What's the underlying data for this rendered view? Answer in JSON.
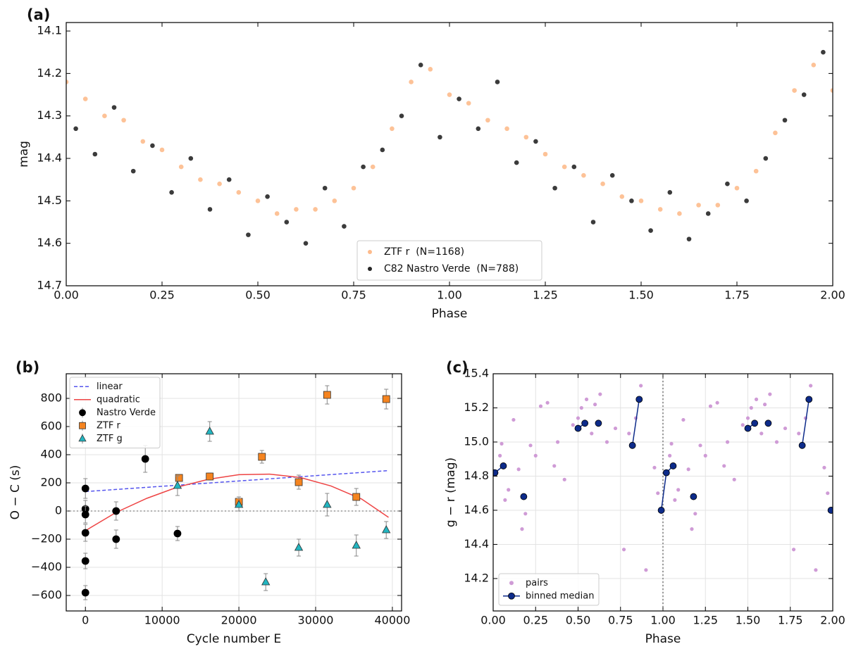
{
  "chart_data": [
    {
      "type": "scatter",
      "panel_label": "(a)",
      "xlabel": "Phase",
      "ylabel": "mag",
      "xlim": [
        0,
        2
      ],
      "ylim": [
        14.08,
        14.7
      ],
      "invert_y": true,
      "grid": false,
      "legend": "lower center",
      "xticks": [
        {
          "value": 0,
          "label": "0.00"
        },
        {
          "value": 0.25,
          "label": "0.25"
        },
        {
          "value": 0.5,
          "label": "0.50"
        },
        {
          "value": 0.75,
          "label": "0.75"
        },
        {
          "value": 1,
          "label": "1.00"
        },
        {
          "value": 1.25,
          "label": "1.25"
        },
        {
          "value": 1.5,
          "label": "1.50"
        },
        {
          "value": 1.75,
          "label": "1.75"
        },
        {
          "value": 2,
          "label": "2.00"
        }
      ],
      "yticks": [
        14.1,
        14.2,
        14.3,
        14.4,
        14.5,
        14.6,
        14.7
      ],
      "series": [
        {
          "name": "ZTF r  (N=1168)",
          "color": "#fdbb8c",
          "marker": "circle",
          "x": [
            0,
            0.05,
            0.1,
            0.15,
            0.2,
            0.25,
            0.3,
            0.35,
            0.4,
            0.45,
            0.5,
            0.55,
            0.6,
            0.65,
            0.7,
            0.75,
            0.8,
            0.85,
            0.9,
            0.95,
            1,
            1.05,
            1.1,
            1.15,
            1.2,
            1.25,
            1.3,
            1.35,
            1.4,
            1.45,
            1.5,
            1.55,
            1.6,
            1.65,
            1.7,
            1.75,
            1.8,
            1.85,
            1.9,
            1.95,
            2
          ],
          "values": [
            14.22,
            14.26,
            14.3,
            14.31,
            14.36,
            14.38,
            14.42,
            14.45,
            14.46,
            14.48,
            14.5,
            14.53,
            14.52,
            14.52,
            14.5,
            14.47,
            14.42,
            14.33,
            14.22,
            14.19,
            14.25,
            14.27,
            14.31,
            14.33,
            14.35,
            14.39,
            14.42,
            14.44,
            14.46,
            14.49,
            14.5,
            14.52,
            14.53,
            14.51,
            14.51,
            14.47,
            14.43,
            14.34,
            14.24,
            14.18,
            14.24
          ]
        },
        {
          "name": "C82 Nastro Verde  (N=788)",
          "color": "#262626",
          "marker": "circle",
          "x": [
            0.025,
            0.075,
            0.125,
            0.175,
            0.225,
            0.275,
            0.325,
            0.375,
            0.425,
            0.475,
            0.525,
            0.575,
            0.625,
            0.675,
            0.725,
            0.775,
            0.825,
            0.875,
            0.925,
            0.975,
            1.025,
            1.075,
            1.125,
            1.175,
            1.225,
            1.275,
            1.325,
            1.375,
            1.425,
            1.475,
            1.525,
            1.575,
            1.625,
            1.675,
            1.725,
            1.775,
            1.825,
            1.875,
            1.925,
            1.975
          ],
          "values": [
            14.33,
            14.39,
            14.28,
            14.43,
            14.37,
            14.48,
            14.4,
            14.52,
            14.45,
            14.58,
            14.49,
            14.55,
            14.6,
            14.47,
            14.56,
            14.42,
            14.38,
            14.3,
            14.18,
            14.35,
            14.26,
            14.33,
            14.22,
            14.41,
            14.36,
            14.47,
            14.42,
            14.55,
            14.44,
            14.5,
            14.57,
            14.48,
            14.59,
            14.53,
            14.46,
            14.5,
            14.4,
            14.31,
            14.25,
            14.15
          ]
        }
      ]
    },
    {
      "type": "errorbar",
      "panel_label": "(b)",
      "xlabel": "Cycle number E",
      "ylabel": "O − C (s)",
      "xlim": [
        -2500,
        41200
      ],
      "ylim": [
        -710,
        975
      ],
      "grid": true,
      "legend": "upper left",
      "hline": 0,
      "xticks": [
        0,
        10000,
        20000,
        30000,
        40000
      ],
      "yticks": [
        {
          "value": -600,
          "label": "−600"
        },
        {
          "value": -400,
          "label": "−400"
        },
        {
          "value": -200,
          "label": "−200"
        },
        0,
        200,
        400,
        600,
        800
      ],
      "series": [
        {
          "name": "linear",
          "type": "line",
          "linestyle": "dashed",
          "color": "#5555ee",
          "x": [
            0,
            39500
          ],
          "values": [
            138,
            287
          ]
        },
        {
          "name": "quadratic",
          "type": "line",
          "color": "#ee4444",
          "x": [
            0,
            4000,
            8000,
            12000,
            16000,
            20000,
            24000,
            28000,
            32000,
            36000,
            39500
          ],
          "values": [
            -140,
            -10,
            90,
            170,
            225,
            258,
            262,
            238,
            178,
            85,
            -45
          ]
        },
        {
          "name": "Nastro Verde",
          "type": "errorbar",
          "marker": "circle",
          "color": "#000000",
          "x": [
            0,
            0,
            0,
            0,
            0,
            0,
            4000,
            4000,
            7800,
            12000
          ],
          "values": [
            160,
            15,
            -25,
            -155,
            -355,
            -580,
            0,
            -200,
            370,
            -160
          ],
          "errors": [
            70,
            60,
            60,
            60,
            55,
            50,
            65,
            65,
            95,
            50
          ]
        },
        {
          "name": "ZTF r",
          "type": "errorbar",
          "marker": "square",
          "color": "#f5841f",
          "x": [
            12200,
            16200,
            20000,
            23000,
            27800,
            31500,
            35300,
            39200
          ],
          "values": [
            235,
            245,
            65,
            385,
            205,
            825,
            100,
            795
          ],
          "errors": [
            20,
            25,
            35,
            45,
            50,
            65,
            60,
            70
          ]
        },
        {
          "name": "ZTF g",
          "type": "errorbar",
          "marker": "triangle",
          "color": "#22b5c0",
          "x": [
            12000,
            16200,
            20000,
            23500,
            27800,
            31500,
            35300,
            39200
          ],
          "values": [
            180,
            565,
            45,
            -505,
            -260,
            45,
            -245,
            -135
          ],
          "errors": [
            70,
            70,
            45,
            60,
            60,
            80,
            75,
            60
          ]
        }
      ]
    },
    {
      "type": "scatter",
      "panel_label": "(c)",
      "xlabel": "Phase",
      "ylabel": "g − r (mag)",
      "xlim": [
        0,
        2
      ],
      "ylim": [
        14.01,
        15.4
      ],
      "grid": true,
      "legend": "lower left",
      "vline": 1,
      "xticks": [
        {
          "value": 0,
          "label": "0.00"
        },
        {
          "value": 0.25,
          "label": "0.25"
        },
        {
          "value": 0.5,
          "label": "0.50"
        },
        {
          "value": 0.75,
          "label": "0.75"
        },
        {
          "value": 1,
          "label": "1.00"
        },
        {
          "value": 1.25,
          "label": "1.25"
        },
        {
          "value": 1.5,
          "label": "1.50"
        },
        {
          "value": 1.75,
          "label": "1.75"
        },
        {
          "value": 2,
          "label": "2.00"
        }
      ],
      "yticks": [
        14.2,
        14.4,
        14.6,
        14.8,
        {
          "value": 15,
          "label": "15.0"
        },
        15.2,
        15.4
      ],
      "series": [
        {
          "name": "pairs",
          "type": "scatter",
          "marker": "circle",
          "color": "#cf9bd6",
          "x": [
            0.02,
            0.04,
            0.05,
            0.07,
            0.09,
            0.12,
            0.15,
            0.17,
            0.19,
            0.22,
            0.25,
            0.28,
            0.32,
            0.36,
            0.38,
            0.42,
            0.47,
            0.5,
            0.52,
            0.55,
            0.58,
            0.6,
            0.63,
            0.67,
            0.72,
            0.77,
            0.8,
            0.84,
            0.87,
            0.9,
            0.95,
            0.97,
            0.99,
            1.02,
            1.04,
            1.05,
            1.07,
            1.09,
            1.12,
            1.15,
            1.17,
            1.19,
            1.22,
            1.25,
            1.28,
            1.32,
            1.36,
            1.38,
            1.42,
            1.47,
            1.5,
            1.52,
            1.55,
            1.58,
            1.6,
            1.63,
            1.67,
            1.72,
            1.77,
            1.8,
            1.84,
            1.87,
            1.9,
            1.95,
            1.97
          ],
          "values": [
            14.82,
            14.92,
            14.99,
            14.66,
            14.72,
            15.13,
            14.84,
            14.49,
            14.58,
            14.98,
            14.92,
            15.21,
            15.23,
            14.86,
            15.0,
            14.78,
            15.1,
            15.14,
            15.2,
            15.25,
            15.05,
            15.22,
            15.28,
            15.0,
            15.08,
            14.37,
            15.05,
            15.14,
            15.33,
            14.25,
            14.85,
            14.7,
            14.59,
            14.82,
            14.92,
            14.99,
            14.66,
            14.72,
            15.13,
            14.84,
            14.49,
            14.58,
            14.98,
            14.92,
            15.21,
            15.23,
            14.86,
            15.0,
            14.78,
            15.1,
            15.14,
            15.2,
            15.25,
            15.05,
            15.22,
            15.28,
            15.0,
            15.08,
            14.37,
            15.05,
            15.14,
            15.33,
            14.25,
            14.85,
            14.7
          ]
        },
        {
          "name": "binned median",
          "type": "line",
          "marker": "circle",
          "color": "#0d2b8a",
          "x": [
            0.01,
            0.06,
            null,
            0.18,
            null,
            0.5,
            0.54,
            null,
            0.62,
            null,
            0.82,
            0.86,
            null,
            0.99,
            1.02,
            1.06,
            null,
            1.18,
            null,
            1.5,
            1.54,
            null,
            1.62,
            null,
            1.82,
            1.86,
            null,
            1.99
          ],
          "values": [
            14.82,
            14.86,
            null,
            14.68,
            null,
            15.08,
            15.11,
            null,
            15.11,
            null,
            14.98,
            15.25,
            null,
            14.6,
            14.82,
            14.86,
            null,
            14.68,
            null,
            15.08,
            15.11,
            null,
            15.11,
            null,
            14.98,
            15.25,
            null,
            14.6
          ]
        }
      ]
    }
  ]
}
